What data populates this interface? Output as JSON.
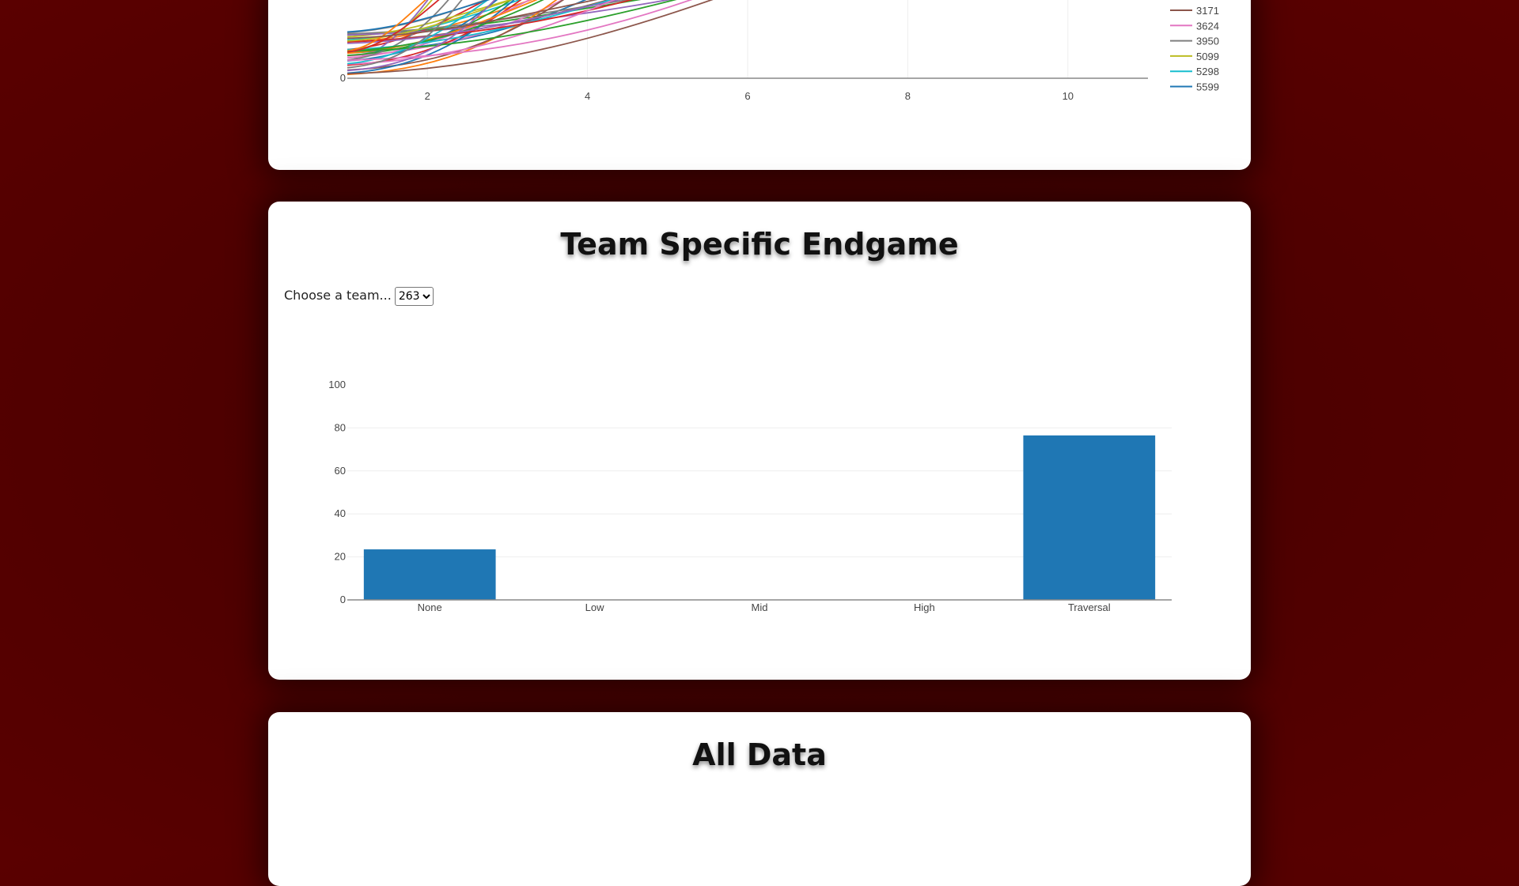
{
  "growth_chart": {
    "x_ticks": [
      "2",
      "4",
      "6",
      "8",
      "10"
    ],
    "y_ticks": [
      "0"
    ],
    "legend": [
      {
        "label": "3171",
        "color": "#8c564b"
      },
      {
        "label": "3624",
        "color": "#e377c2"
      },
      {
        "label": "3950",
        "color": "#7f7f7f"
      },
      {
        "label": "5099",
        "color": "#bcbd22"
      },
      {
        "label": "5298",
        "color": "#17becf"
      },
      {
        "label": "5599",
        "color": "#1f77b4"
      }
    ]
  },
  "endgame": {
    "title": "Team Specific Endgame",
    "chooser_label": "Choose a team...",
    "selected_team": "263",
    "chart_data": {
      "type": "bar",
      "categories": [
        "None",
        "Low",
        "Mid",
        "High",
        "Traversal"
      ],
      "values": [
        23.5,
        0,
        0,
        0,
        76.5
      ],
      "y_ticks": [
        "0",
        "20",
        "40",
        "60",
        "80",
        "100"
      ],
      "ylim": [
        0,
        100
      ],
      "bar_color": "#1f77b4",
      "grid": true
    }
  },
  "all_data": {
    "title": "All Data"
  }
}
